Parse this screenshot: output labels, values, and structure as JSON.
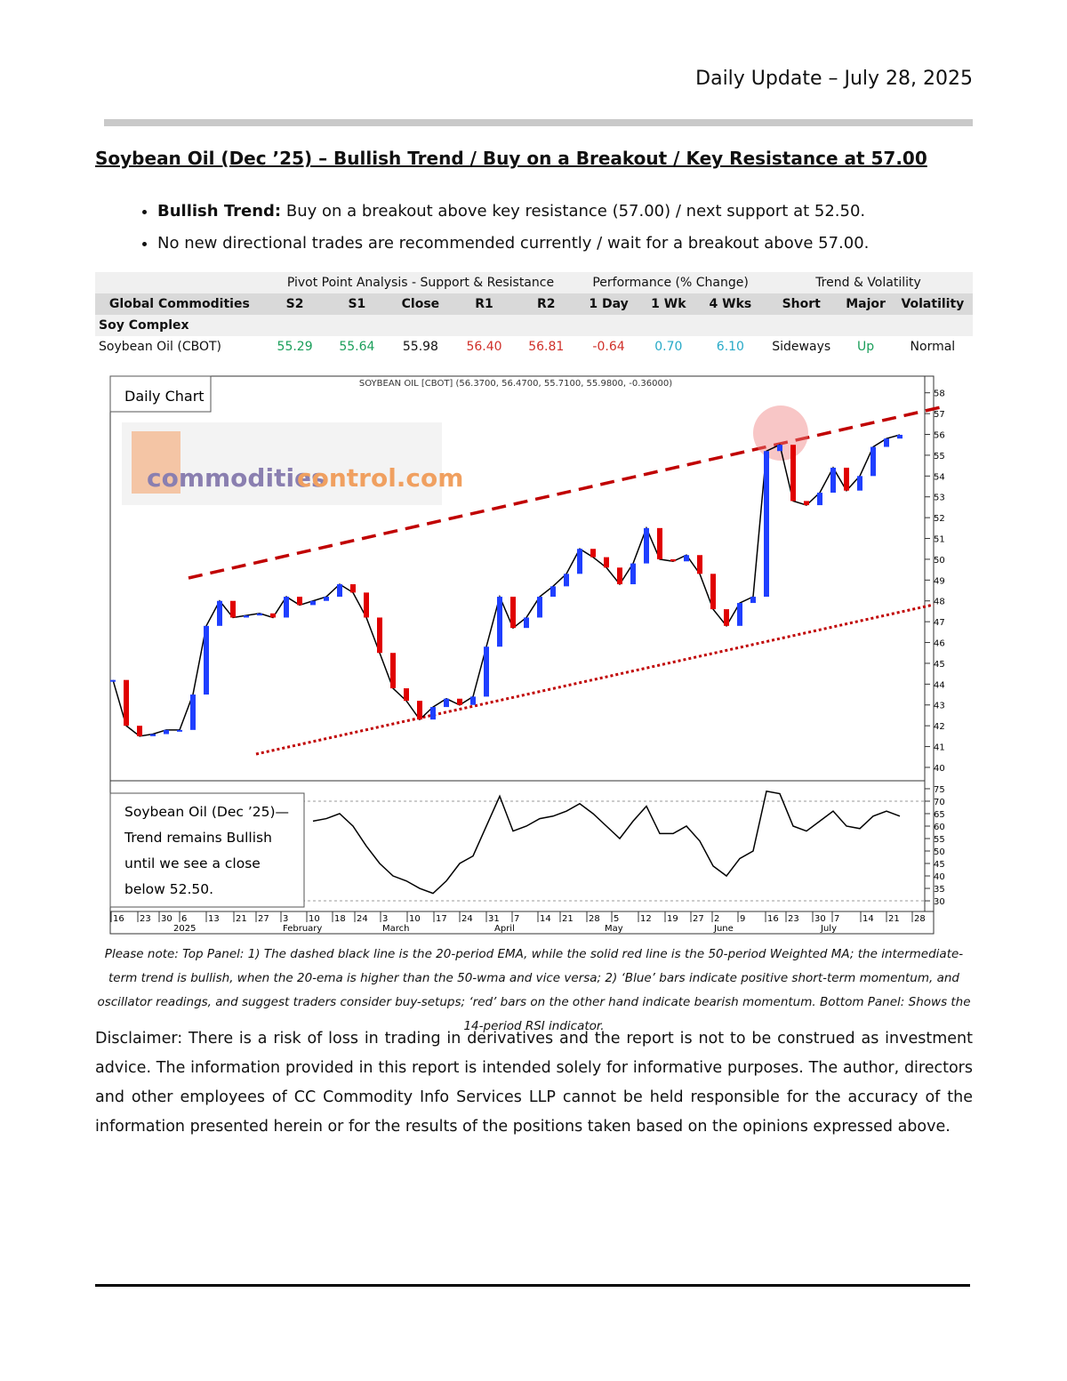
{
  "header": {
    "date_line": "Daily Update – July 28, 2025"
  },
  "title": "Soybean Oil (Dec ’25) – Bullish Trend / Buy on a Breakout / Key Resistance at 57.00",
  "bullets": [
    {
      "label": "Bullish Trend:",
      "text": "Buy on a breakout above key resistance (57.00) / next support at 52.50."
    },
    {
      "text": "No new directional trades are recommended currently / wait for a breakout above 57.00."
    }
  ],
  "table": {
    "group_headers": [
      "Pivot Point Analysis - Support & Resistance",
      "Performance (% Change)",
      "Trend & Volatility"
    ],
    "columns": [
      "Global Commodities",
      "S2",
      "S1",
      "Close",
      "R1",
      "R2",
      "1 Day",
      "1 Wk",
      "4 Wks",
      "Short",
      "Major",
      "Volatility"
    ],
    "section": "Soy Complex",
    "rows": [
      [
        "Soybean Oil (CBOT)",
        "55.29",
        "55.64",
        "55.98",
        "56.40",
        "56.81",
        "-0.64",
        "0.70",
        "6.10",
        "Sideways",
        "Up",
        "Normal"
      ]
    ]
  },
  "chart": {
    "panel_label": "Daily Chart",
    "chart_header": "SOYBEAN OIL [CBOT] (56.3700, 56.4700, 55.7100, 55.9800, -0.36000)",
    "logo": [
      "commodities",
      "control.com"
    ],
    "price": {
      "ylim": [
        39.4,
        58.5
      ],
      "yticks": [
        40,
        41,
        42,
        43,
        44,
        45,
        46,
        47,
        48,
        49,
        50,
        51,
        52,
        53,
        54,
        55,
        56,
        57,
        58
      ],
      "closes": [
        44.2,
        42,
        41.5,
        41.6,
        41.8,
        41.8,
        43.5,
        46.8,
        48,
        47.2,
        47.3,
        47.4,
        47.2,
        48.2,
        47.8,
        48,
        48.2,
        48.8,
        48.4,
        47.2,
        45.5,
        43.8,
        43.2,
        42.3,
        42.9,
        43.3,
        43,
        43.4,
        45.8,
        48.2,
        46.7,
        47.2,
        48.2,
        48.7,
        49.3,
        50.5,
        50.1,
        49.6,
        48.8,
        49.8,
        51.5,
        50,
        49.9,
        50.2,
        49.3,
        47.6,
        46.8,
        47.9,
        48.2,
        55.2,
        55.5,
        52.8,
        52.6,
        53.2,
        54.4,
        53.3,
        54,
        55.4,
        55.8,
        55.98
      ]
    },
    "rsi": {
      "ylim": [
        26.8,
        78.2
      ],
      "yticks": [
        30,
        35,
        40,
        45,
        50,
        55,
        60,
        65,
        70,
        75
      ],
      "values": [
        null,
        null,
        null,
        null,
        null,
        null,
        null,
        null,
        null,
        null,
        null,
        null,
        null,
        null,
        null,
        62,
        63,
        65,
        60,
        52,
        45,
        40,
        38,
        35,
        33,
        38,
        45,
        48,
        60,
        72,
        58,
        60,
        63,
        64,
        66,
        69,
        65,
        60,
        55,
        62,
        68,
        57,
        57,
        60,
        54,
        44,
        40,
        47,
        50,
        74,
        73,
        60,
        58,
        62,
        66,
        60,
        59,
        64,
        66,
        64
      ]
    },
    "x_labels": [
      "16",
      "23",
      "30",
      "6",
      "13",
      "21",
      "27",
      "3",
      "10",
      "18",
      "24",
      "3",
      "10",
      "17",
      "24",
      "31",
      "7",
      "14",
      "21",
      "28",
      "5",
      "12",
      "19",
      "27",
      "2",
      "9",
      "16",
      "23",
      "30",
      "7",
      "14",
      "21",
      "28"
    ],
    "months": [
      "2025",
      "February",
      "March",
      "April",
      "May",
      "June",
      "July"
    ],
    "annotation": [
      "Soybean Oil (Dec ’25)—",
      "Trend remains Bullish",
      "until we see a close",
      "below 52.50."
    ]
  },
  "footnote": "Please note: Top Panel: 1) The dashed black line is the 20-period EMA, while the solid red line is the 50-period Weighted MA; the intermediate-term trend is bullish, when the 20-ema is higher than the 50-wma and vice versa; 2) ‘Blue’ bars indicate positive short-term momentum, and oscillator readings, and suggest traders consider buy-setups; ‘red’ bars on the other hand indicate bearish momentum. Bottom Panel: Shows the 14-period RSI indicator.",
  "disclaimer": "Disclaimer: There is a risk of loss in trading in derivatives and the report is not to be construed as investment advice. The information provided in this report is intended solely for informative purposes. The author, directors and other employees of CC Commodity Info Services LLP cannot be held responsible for the accuracy of the information presented herein or for the results of the positions taken based on the opinions expressed above."
}
